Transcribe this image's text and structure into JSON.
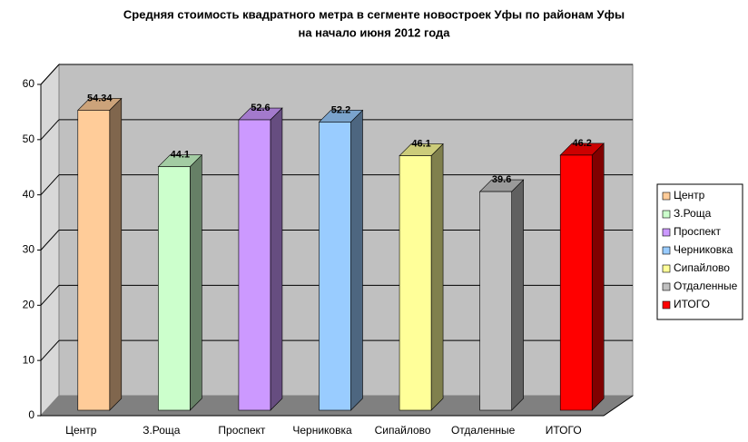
{
  "chart_data": {
    "type": "bar3d",
    "title": [
      "Средняя стоимость квадратного метра в сегменте новостроек Уфы по районам Уфы",
      "на начало июня 2012 года"
    ],
    "categories": [
      "Центр",
      "З.Роща",
      "Проспект",
      "Черниковка",
      "Сипайлово",
      "Отдаленные",
      "ИТОГО"
    ],
    "values": [
      54.34,
      44.1,
      52.6,
      52.2,
      46.1,
      39.6,
      46.2
    ],
    "colors": [
      "#FFCC99",
      "#CCFFCC",
      "#CC99FF",
      "#99CCFF",
      "#FFFF99",
      "#C0C0C0",
      "#FF0000"
    ],
    "ylim": [
      0,
      60
    ],
    "yticks": [
      0,
      10,
      20,
      30,
      40,
      50,
      60
    ],
    "grid": true,
    "legend": "right"
  }
}
